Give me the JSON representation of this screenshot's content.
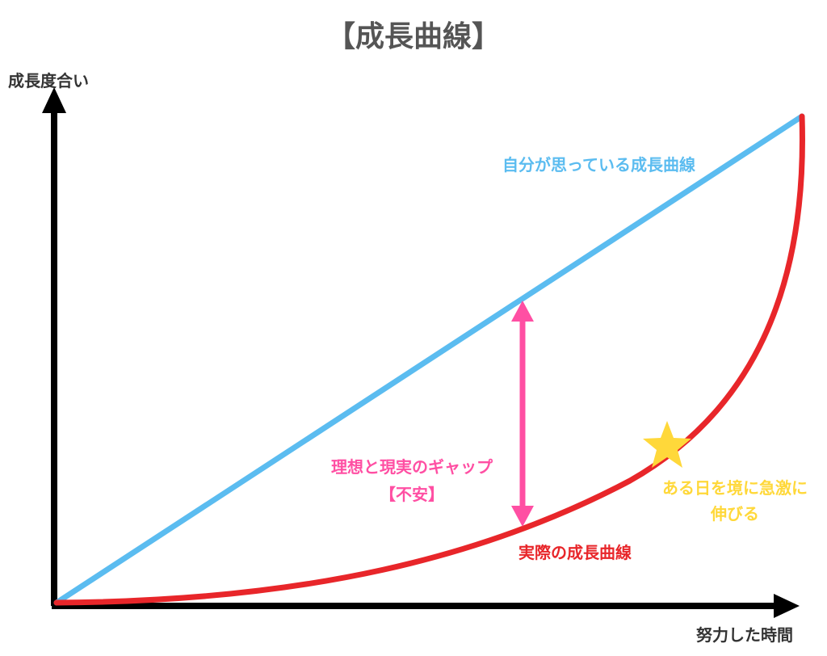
{
  "title": "【成長曲線】",
  "axes": {
    "y_label": "成長度合い",
    "x_label": "努力した時間"
  },
  "lines": {
    "ideal": {
      "label": "自分が思っている成長曲線",
      "color": "#5bbcf0"
    },
    "actual": {
      "label": "実際の成長曲線",
      "color": "#e8262a"
    }
  },
  "gap": {
    "label_line1": "理想と現実のギャップ",
    "label_line2": "【不安】",
    "color": "#ff4fa3"
  },
  "breakthrough": {
    "label_line1": "ある日を境に急激に",
    "label_line2": "伸びる",
    "color": "#ffd83a",
    "icon": "star-icon"
  },
  "axis_color": "#000000"
}
